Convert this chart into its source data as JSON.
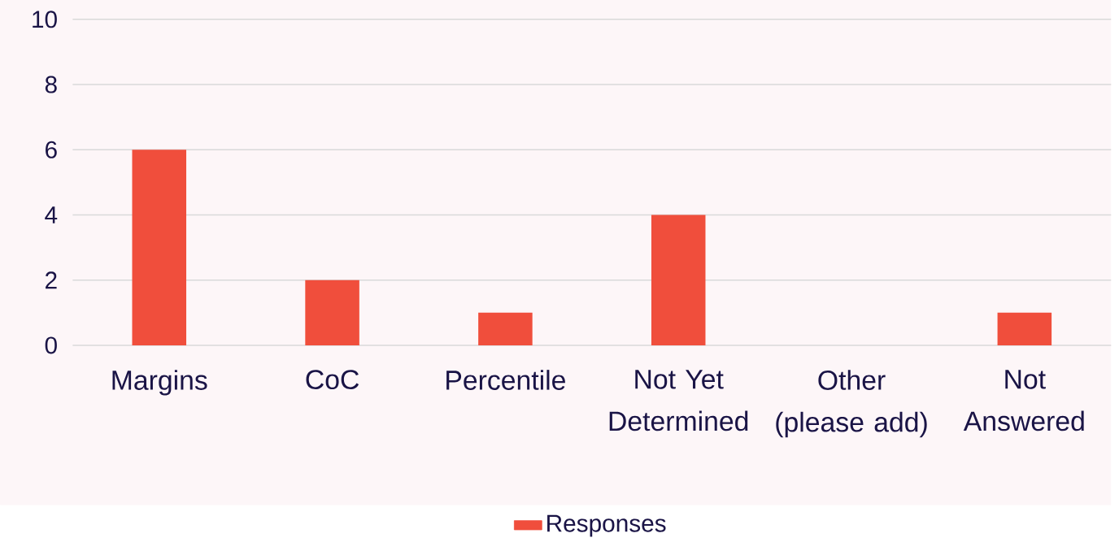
{
  "chart_data": {
    "type": "bar",
    "categories": [
      "Margins",
      "CoC",
      "Percentile",
      "Not Yet Determined",
      "Other (please add)",
      "Not Answered"
    ],
    "series": [
      {
        "name": "Responses",
        "color": "#f04e3c",
        "values": [
          6,
          2,
          1,
          4,
          0,
          1
        ]
      }
    ],
    "ylim": [
      0,
      10
    ],
    "yticks": [
      0,
      2,
      4,
      6,
      8,
      10
    ],
    "grid": "y",
    "legend": "bottom"
  }
}
